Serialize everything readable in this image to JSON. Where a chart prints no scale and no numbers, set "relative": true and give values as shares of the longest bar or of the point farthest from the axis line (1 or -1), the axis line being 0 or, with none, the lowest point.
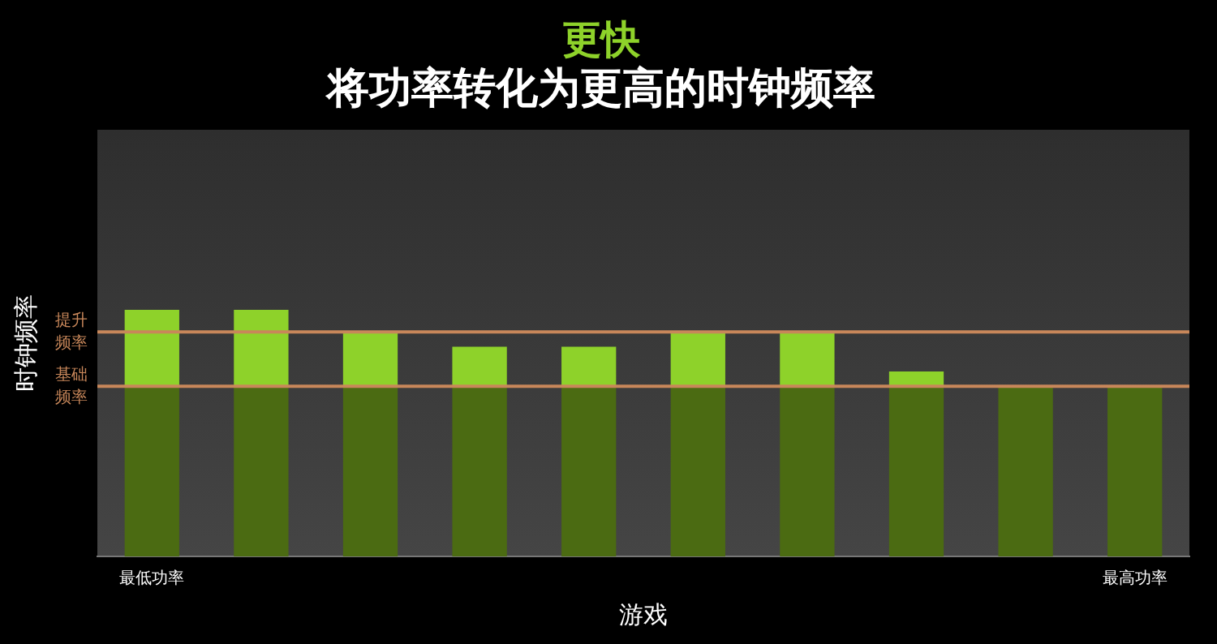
{
  "chart_data": {
    "type": "bar",
    "title": "更快",
    "subtitle": "将功率转化为更高的时钟频率",
    "xlabel": "游戏",
    "ylabel": "时钟频率",
    "relative": true,
    "stacked": true,
    "legend": false,
    "grid": false,
    "categories": [
      "最低功率",
      null,
      null,
      null,
      null,
      null,
      null,
      null,
      null,
      "最高功率"
    ],
    "series": [
      {
        "color": "#4b6b12",
        "values": [
          0.69,
          0.69,
          0.69,
          0.69,
          0.69,
          0.69,
          0.69,
          0.69,
          0.69,
          0.69
        ]
      },
      {
        "color": "#8ed22a",
        "values": [
          0.31,
          0.31,
          0.22,
          0.16,
          0.16,
          0.22,
          0.22,
          0.06,
          0,
          0
        ]
      }
    ],
    "ref_lines": [
      {
        "axis": "y",
        "value": 0.91,
        "label": "提升频率",
        "color": "#c8875a"
      },
      {
        "axis": "y",
        "value": 0.69,
        "label": "基础频率",
        "color": "#c8875a"
      }
    ]
  }
}
